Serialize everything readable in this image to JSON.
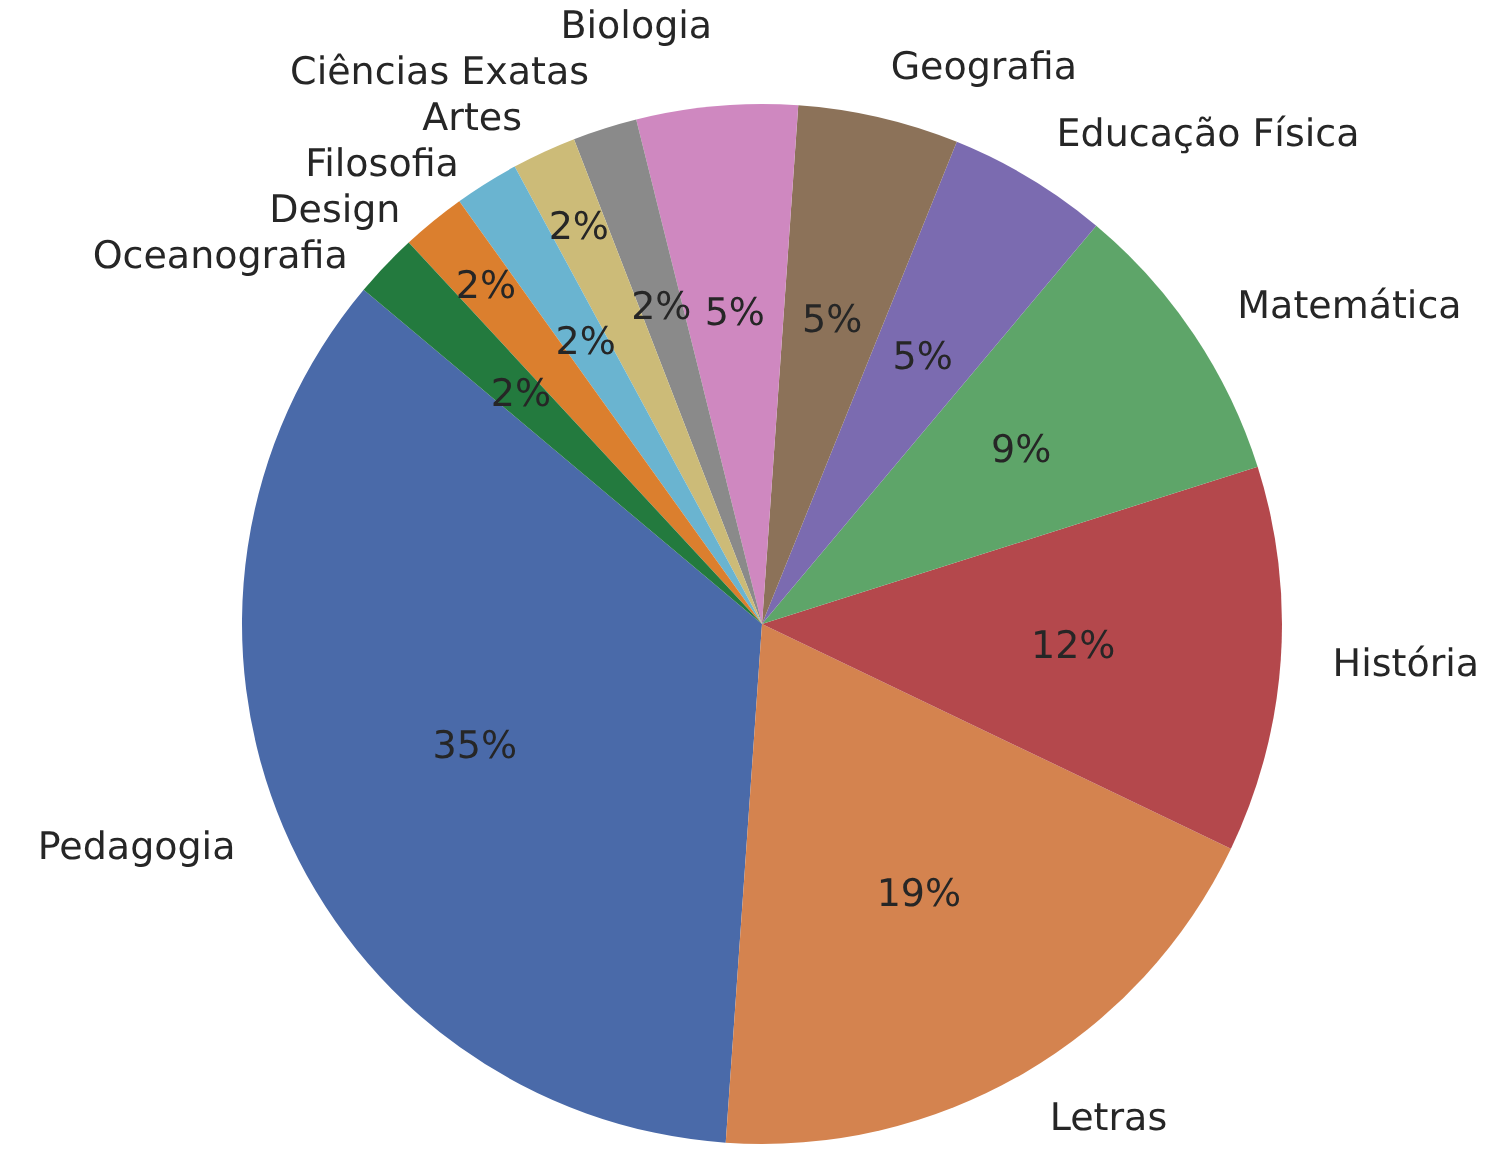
{
  "chart_data": {
    "type": "pie",
    "categories": [
      "Pedagogia",
      "Letras",
      "História",
      "Matemática",
      "Educação Física",
      "Geografia",
      "Biologia",
      "Ciências Exatas",
      "Artes",
      "Filosofia",
      "Design",
      "Oceanografia"
    ],
    "values": [
      35,
      19,
      12,
      9,
      5,
      5,
      5,
      2,
      2,
      2,
      2,
      2
    ],
    "value_labels": [
      "35%",
      "19%",
      "12%",
      "9%",
      "5%",
      "5%",
      "5%",
      "2%",
      "2%",
      "2%",
      "2%",
      "2%"
    ],
    "colors": [
      "#4a6aa9",
      "#d4834f",
      "#b4484c",
      "#5ea569",
      "#7b6bb0",
      "#8c7259",
      "#cf88c0",
      "#8a8a8a",
      "#ccbb78",
      "#6ab4d0",
      "#db7f2e",
      "#237a3e"
    ]
  }
}
